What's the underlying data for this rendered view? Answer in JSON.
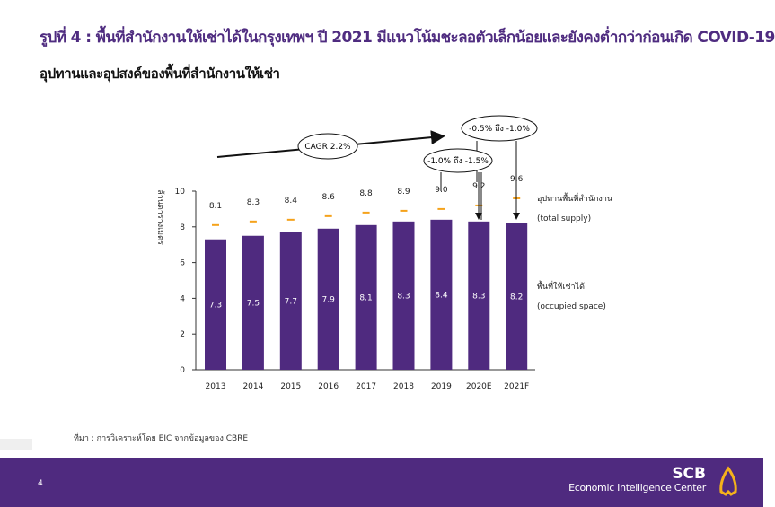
{
  "header": {
    "title": "รูปที่ 4 : พื้นที่สำนักงานให้เช่าได้ในกรุงเทพฯ ปี 2021 มีแนวโน้มชะลอตัวเล็กน้อยและยังคงต่ำกว่าก่อนเกิด COVID-19",
    "subtitle": "อุปทานและอุปสงค์ของพื้นที่สำนักงานให้เช่า"
  },
  "chart_data": {
    "type": "bar",
    "categories": [
      "2013",
      "2014",
      "2015",
      "2016",
      "2017",
      "2018",
      "2019",
      "2020E",
      "2021F"
    ],
    "series": [
      {
        "name": "พื้นที่ให้เช่าได้ (occupied space)",
        "type": "bar",
        "color": "#4f2a7f",
        "values": [
          7.3,
          7.5,
          7.7,
          7.9,
          8.1,
          8.3,
          8.4,
          8.3,
          8.2
        ]
      },
      {
        "name": "อุปทานพื้นที่สำนักงาน (total supply)",
        "type": "marker",
        "color": "#f5a21b",
        "values": [
          8.1,
          8.3,
          8.4,
          8.6,
          8.8,
          8.9,
          9.0,
          9.2,
          9.6
        ]
      }
    ],
    "ylabel": "ล้านตารางเมตร",
    "ylim": [
      0,
      10
    ],
    "yticks": [
      "0",
      "2",
      "4",
      "6",
      "8",
      "10"
    ],
    "legend": {
      "supply_th": "อุปทานพื้นที่สำนักงาน",
      "supply_en": "(total supply)",
      "occupied_th": "พื้นที่ให้เช่าได้",
      "occupied_en": "(occupied space)"
    },
    "annotations": {
      "cagr": "CAGR 2.2%",
      "range_2020": "-1.0% ถึง -1.5%",
      "range_2021": "-0.5% ถึง -1.0%"
    }
  },
  "source": "ที่มา : การวิเคราะห์โดย EIC จากข้อมูลของ CBRE",
  "footer": {
    "page": "4",
    "brand": "SCB",
    "center": "Economic Intelligence Center"
  }
}
